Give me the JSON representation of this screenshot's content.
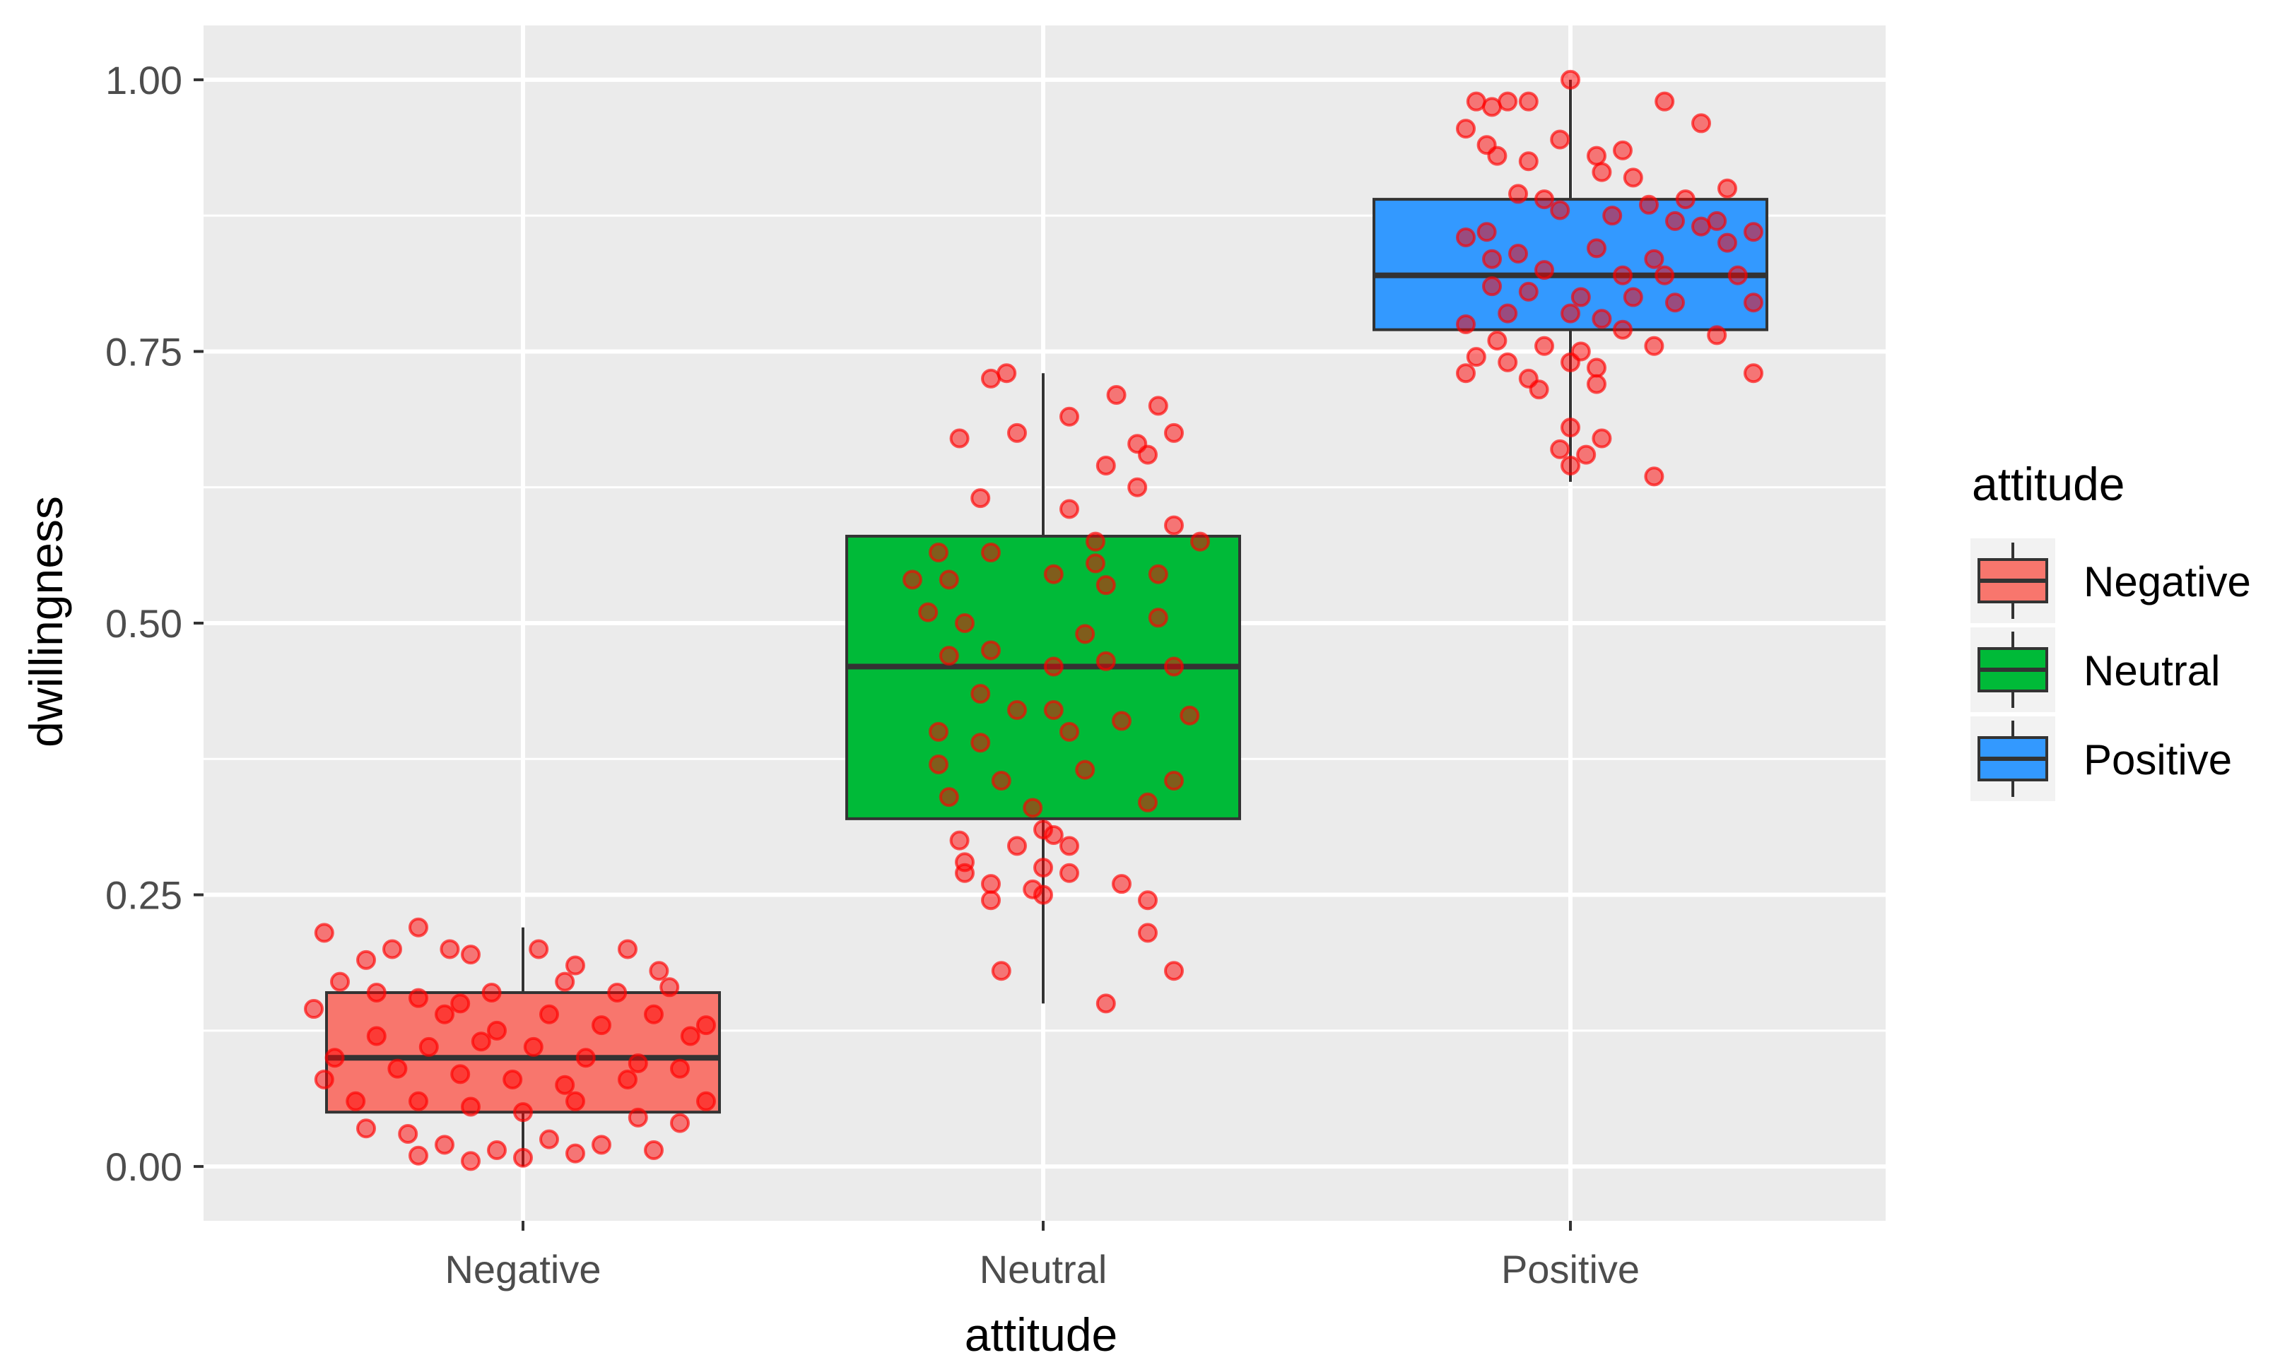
{
  "chart_data": {
    "type": "boxplot",
    "xlabel": "attitude",
    "ylabel": "dwillingness",
    "ylim": [
      -0.05,
      1.05
    ],
    "y_ticks": [
      {
        "value": 0.0,
        "label": "0.00"
      },
      {
        "value": 0.25,
        "label": "0.25"
      },
      {
        "value": 0.5,
        "label": "0.50"
      },
      {
        "value": 0.75,
        "label": "0.75"
      },
      {
        "value": 1.0,
        "label": "1.00"
      }
    ],
    "y_minor_ticks": [
      0.125,
      0.375,
      0.625,
      0.875
    ],
    "categories": [
      "Negative",
      "Neutral",
      "Positive"
    ],
    "boxes": [
      {
        "category": "Negative",
        "whisker_low": 0.0,
        "q1": 0.05,
        "median": 0.1,
        "q3": 0.16,
        "whisker_high": 0.22,
        "fill": "#F8766D"
      },
      {
        "category": "Neutral",
        "whisker_low": 0.15,
        "q1": 0.32,
        "median": 0.46,
        "q3": 0.58,
        "whisker_high": 0.73,
        "fill": "#00BA38"
      },
      {
        "category": "Positive",
        "whisker_low": 0.63,
        "q1": 0.77,
        "median": 0.82,
        "q3": 0.89,
        "whisker_high": 1.0,
        "fill": "#3399FF"
      }
    ],
    "jitter": {
      "color": "#FF0000",
      "note": "approximate jittered observations, dx in category-width units",
      "points": {
        "Negative": [
          [
            -0.38,
            0.215
          ],
          [
            -0.3,
            0.19
          ],
          [
            -0.25,
            0.2
          ],
          [
            -0.2,
            0.22
          ],
          [
            -0.14,
            0.2
          ],
          [
            -0.1,
            0.195
          ],
          [
            0.03,
            0.2
          ],
          [
            0.2,
            0.2
          ],
          [
            0.1,
            0.185
          ],
          [
            -0.35,
            0.17
          ],
          [
            -0.28,
            0.16
          ],
          [
            -0.2,
            0.155
          ],
          [
            -0.12,
            0.15
          ],
          [
            0.08,
            0.17
          ],
          [
            0.18,
            0.16
          ],
          [
            0.28,
            0.165
          ],
          [
            -0.4,
            0.145
          ],
          [
            -0.15,
            0.14
          ],
          [
            -0.05,
            0.125
          ],
          [
            0.05,
            0.14
          ],
          [
            0.15,
            0.13
          ],
          [
            0.25,
            0.14
          ],
          [
            0.32,
            0.12
          ],
          [
            -0.28,
            0.12
          ],
          [
            -0.18,
            0.11
          ],
          [
            -0.08,
            0.115
          ],
          [
            0.02,
            0.11
          ],
          [
            0.12,
            0.1
          ],
          [
            0.22,
            0.095
          ],
          [
            0.3,
            0.09
          ],
          [
            -0.36,
            0.1
          ],
          [
            -0.24,
            0.09
          ],
          [
            -0.12,
            0.085
          ],
          [
            -0.02,
            0.08
          ],
          [
            0.08,
            0.075
          ],
          [
            0.2,
            0.08
          ],
          [
            -0.32,
            0.06
          ],
          [
            -0.2,
            0.06
          ],
          [
            -0.1,
            0.055
          ],
          [
            0.0,
            0.05
          ],
          [
            0.1,
            0.06
          ],
          [
            0.22,
            0.045
          ],
          [
            0.3,
            0.04
          ],
          [
            -0.3,
            0.035
          ],
          [
            -0.22,
            0.03
          ],
          [
            -0.15,
            0.02
          ],
          [
            -0.05,
            0.015
          ],
          [
            0.05,
            0.025
          ],
          [
            0.15,
            0.02
          ],
          [
            0.25,
            0.015
          ],
          [
            -0.2,
            0.01
          ],
          [
            0.0,
            0.008
          ],
          [
            0.1,
            0.012
          ],
          [
            -0.1,
            0.005
          ],
          [
            0.35,
            0.13
          ],
          [
            -0.38,
            0.08
          ],
          [
            0.35,
            0.06
          ],
          [
            -0.06,
            0.16
          ],
          [
            0.26,
            0.18
          ]
        ],
        "Neutral": [
          [
            -0.1,
            0.725
          ],
          [
            -0.07,
            0.73
          ],
          [
            0.14,
            0.71
          ],
          [
            0.05,
            0.69
          ],
          [
            0.22,
            0.7
          ],
          [
            -0.16,
            0.67
          ],
          [
            -0.05,
            0.675
          ],
          [
            0.18,
            0.665
          ],
          [
            0.25,
            0.675
          ],
          [
            0.2,
            0.655
          ],
          [
            0.12,
            0.645
          ],
          [
            -0.12,
            0.615
          ],
          [
            0.05,
            0.605
          ],
          [
            0.18,
            0.625
          ],
          [
            0.25,
            0.59
          ],
          [
            0.1,
            0.575
          ],
          [
            0.3,
            0.575
          ],
          [
            -0.2,
            0.565
          ],
          [
            -0.1,
            0.565
          ],
          [
            0.1,
            0.555
          ],
          [
            -0.25,
            0.54
          ],
          [
            -0.18,
            0.54
          ],
          [
            0.02,
            0.545
          ],
          [
            0.12,
            0.535
          ],
          [
            0.22,
            0.545
          ],
          [
            -0.22,
            0.51
          ],
          [
            -0.15,
            0.5
          ],
          [
            0.08,
            0.49
          ],
          [
            0.22,
            0.505
          ],
          [
            -0.18,
            0.47
          ],
          [
            -0.1,
            0.475
          ],
          [
            0.02,
            0.46
          ],
          [
            0.12,
            0.465
          ],
          [
            0.25,
            0.46
          ],
          [
            -0.12,
            0.435
          ],
          [
            -0.05,
            0.42
          ],
          [
            0.02,
            0.42
          ],
          [
            0.15,
            0.41
          ],
          [
            0.28,
            0.415
          ],
          [
            -0.2,
            0.4
          ],
          [
            -0.12,
            0.39
          ],
          [
            0.05,
            0.4
          ],
          [
            -0.2,
            0.37
          ],
          [
            -0.08,
            0.355
          ],
          [
            0.08,
            0.365
          ],
          [
            0.25,
            0.355
          ],
          [
            -0.18,
            0.34
          ],
          [
            0.2,
            0.335
          ],
          [
            -0.02,
            0.33
          ],
          [
            -0.16,
            0.3
          ],
          [
            0.0,
            0.31
          ],
          [
            0.02,
            0.305
          ],
          [
            -0.15,
            0.28
          ],
          [
            -0.05,
            0.295
          ],
          [
            0.05,
            0.295
          ],
          [
            -0.15,
            0.27
          ],
          [
            0.0,
            0.275
          ],
          [
            0.05,
            0.27
          ],
          [
            -0.1,
            0.26
          ],
          [
            -0.02,
            0.255
          ],
          [
            0.15,
            0.26
          ],
          [
            -0.1,
            0.245
          ],
          [
            0.0,
            0.25
          ],
          [
            0.2,
            0.245
          ],
          [
            0.2,
            0.215
          ],
          [
            -0.08,
            0.18
          ],
          [
            0.25,
            0.18
          ],
          [
            0.12,
            0.15
          ]
        ],
        "Positive": [
          [
            0.0,
            1.0
          ],
          [
            0.18,
            0.98
          ],
          [
            -0.18,
            0.98
          ],
          [
            -0.15,
            0.975
          ],
          [
            -0.12,
            0.98
          ],
          [
            -0.08,
            0.98
          ],
          [
            0.25,
            0.96
          ],
          [
            -0.2,
            0.955
          ],
          [
            -0.16,
            0.94
          ],
          [
            -0.02,
            0.945
          ],
          [
            0.05,
            0.93
          ],
          [
            0.1,
            0.935
          ],
          [
            -0.14,
            0.93
          ],
          [
            -0.08,
            0.925
          ],
          [
            0.06,
            0.915
          ],
          [
            0.12,
            0.91
          ],
          [
            0.3,
            0.9
          ],
          [
            -0.1,
            0.895
          ],
          [
            -0.05,
            0.89
          ],
          [
            0.15,
            0.885
          ],
          [
            0.22,
            0.89
          ],
          [
            0.28,
            0.87
          ],
          [
            0.35,
            0.86
          ],
          [
            -0.02,
            0.88
          ],
          [
            0.08,
            0.875
          ],
          [
            0.2,
            0.87
          ],
          [
            0.25,
            0.865
          ],
          [
            -0.16,
            0.86
          ],
          [
            -0.2,
            0.855
          ],
          [
            0.3,
            0.85
          ],
          [
            0.05,
            0.845
          ],
          [
            -0.1,
            0.84
          ],
          [
            0.16,
            0.835
          ],
          [
            -0.05,
            0.825
          ],
          [
            0.1,
            0.82
          ],
          [
            0.18,
            0.82
          ],
          [
            0.32,
            0.82
          ],
          [
            -0.15,
            0.81
          ],
          [
            -0.08,
            0.805
          ],
          [
            0.02,
            0.8
          ],
          [
            0.12,
            0.8
          ],
          [
            0.2,
            0.795
          ],
          [
            0.35,
            0.795
          ],
          [
            -0.12,
            0.785
          ],
          [
            0.0,
            0.785
          ],
          [
            0.06,
            0.78
          ],
          [
            -0.2,
            0.775
          ],
          [
            0.1,
            0.77
          ],
          [
            0.28,
            0.765
          ],
          [
            -0.14,
            0.76
          ],
          [
            -0.05,
            0.755
          ],
          [
            0.02,
            0.75
          ],
          [
            0.16,
            0.755
          ],
          [
            -0.18,
            0.745
          ],
          [
            -0.12,
            0.74
          ],
          [
            0.0,
            0.74
          ],
          [
            0.05,
            0.735
          ],
          [
            -0.2,
            0.73
          ],
          [
            -0.08,
            0.725
          ],
          [
            0.05,
            0.72
          ],
          [
            0.35,
            0.73
          ],
          [
            -0.06,
            0.715
          ],
          [
            0.0,
            0.68
          ],
          [
            0.06,
            0.67
          ],
          [
            -0.02,
            0.66
          ],
          [
            0.03,
            0.655
          ],
          [
            0.0,
            0.645
          ],
          [
            0.16,
            0.635
          ],
          [
            -0.15,
            0.835
          ]
        ]
      }
    },
    "legend": {
      "title": "attitude",
      "position": "right",
      "entries": [
        {
          "label": "Negative",
          "color": "#F8766D"
        },
        {
          "label": "Neutral",
          "color": "#00BA38"
        },
        {
          "label": "Positive",
          "color": "#3399FF"
        }
      ]
    },
    "panel_background": "#EBEBEB",
    "grid_color": "#FFFFFF"
  }
}
